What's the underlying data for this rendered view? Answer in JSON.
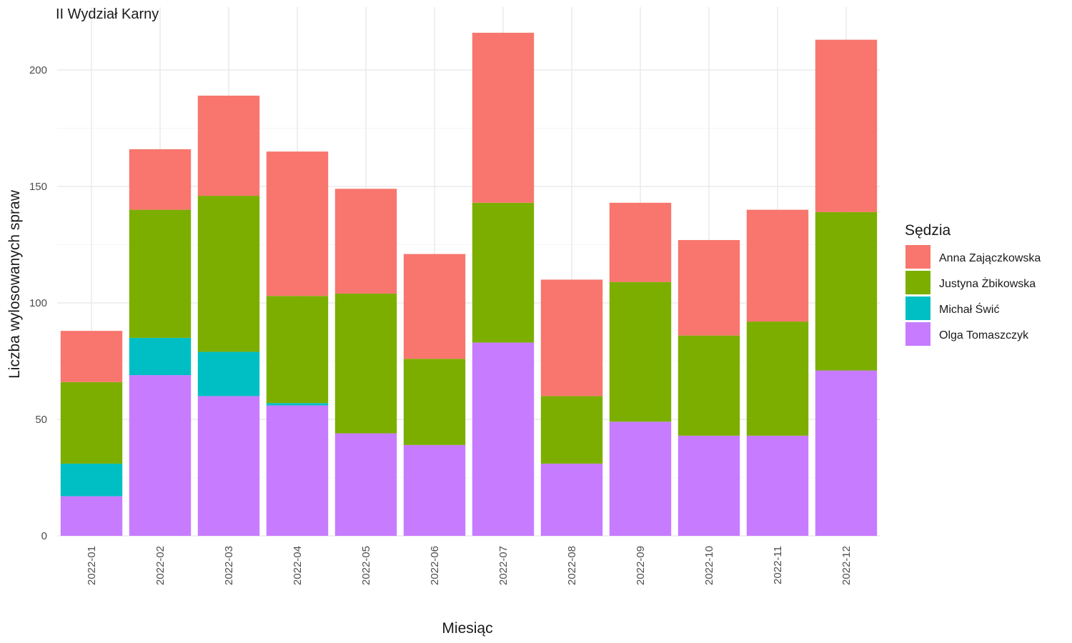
{
  "chart_data": {
    "type": "bar",
    "stacked": true,
    "title": "II Wydział Karny",
    "xlabel": "Miesiąc",
    "ylabel": "Liczba wylosowanych spraw",
    "ylim": [
      0,
      222
    ],
    "yticks": [
      0,
      50,
      100,
      150,
      200
    ],
    "grid": true,
    "legend_title": "Sędzia",
    "legend_position": "right",
    "categories": [
      "2022-01",
      "2022-02",
      "2022-03",
      "2022-04",
      "2022-05",
      "2022-06",
      "2022-07",
      "2022-08",
      "2022-09",
      "2022-10",
      "2022-11",
      "2022-12"
    ],
    "series": [
      {
        "name": "Anna Zajączkowska",
        "color": "#F8766D",
        "values": [
          22,
          26,
          43,
          62,
          45,
          45,
          73,
          50,
          34,
          41,
          48,
          74
        ]
      },
      {
        "name": "Justyna Żbikowska",
        "color": "#7CAE00",
        "values": [
          35,
          55,
          67,
          46,
          60,
          37,
          60,
          29,
          60,
          43,
          49,
          68
        ]
      },
      {
        "name": "Michał Świć",
        "color": "#00BFC4",
        "values": [
          14,
          16,
          19,
          1,
          0,
          0,
          0,
          0,
          0,
          0,
          0,
          0
        ]
      },
      {
        "name": "Olga Tomaszczyk",
        "color": "#C77CFF",
        "values": [
          17,
          69,
          60,
          56,
          44,
          39,
          83,
          31,
          49,
          43,
          43,
          71
        ]
      }
    ]
  }
}
